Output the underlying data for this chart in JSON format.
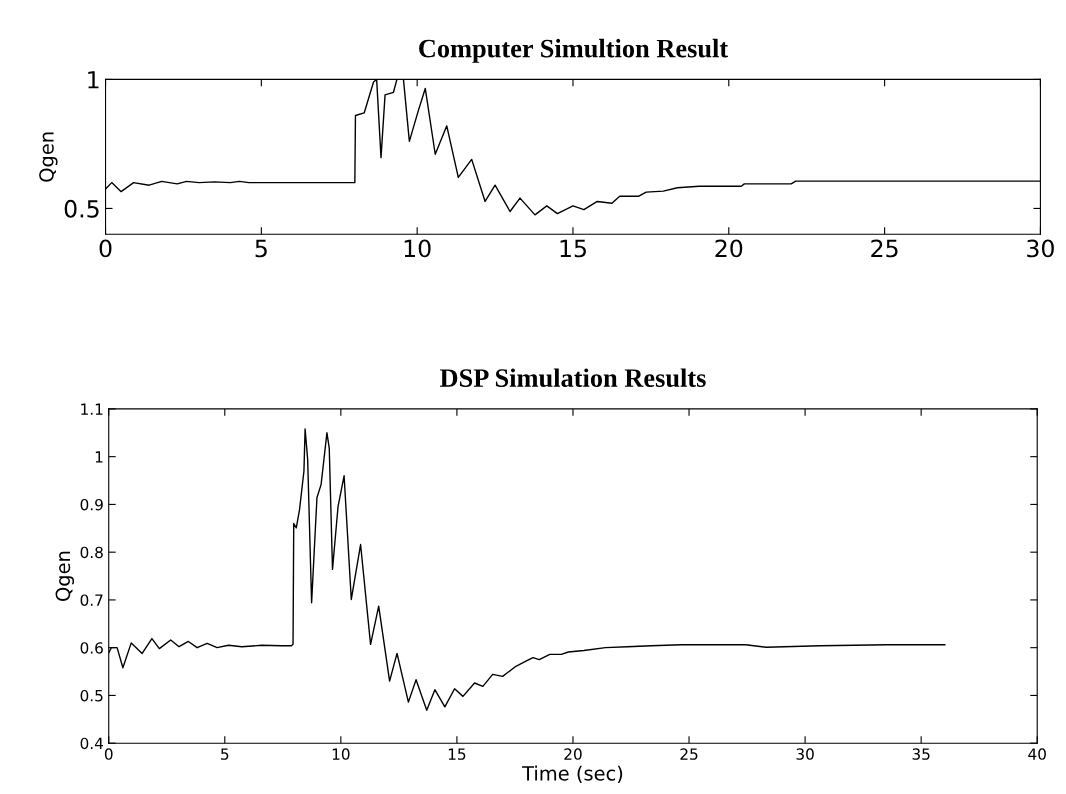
{
  "chart_data": [
    {
      "type": "line",
      "title": "Computer Simultion Result",
      "ylabel": "Qgen",
      "xlim": [
        0,
        30
      ],
      "ylim": [
        0.4,
        1
      ],
      "xticks": [
        0,
        5,
        10,
        15,
        20,
        25,
        30
      ],
      "yticks": [
        0.5,
        1
      ],
      "grid": false,
      "series": [
        {
          "color": "#000000",
          "x": [
            0,
            0.2,
            0.5,
            0.9,
            1.4,
            1.8,
            2.3,
            2.6,
            3,
            3.5,
            4,
            4.3,
            4.6,
            8.0,
            8.02,
            8.3,
            8.6,
            8.7,
            8.84,
            8.97,
            9.24,
            9.35,
            9.56,
            9.75,
            10.04,
            10.26,
            10.58,
            10.95,
            11.32,
            11.75,
            12.18,
            12.5,
            12.98,
            13.3,
            13.78,
            14.16,
            14.5,
            15,
            15.35,
            15.78,
            16.25,
            16.5,
            17.1,
            17.35,
            17.9,
            18.35,
            19.05,
            20.4,
            20.5,
            22.0,
            22.15,
            30
          ],
          "values": [
            0.575,
            0.6,
            0.565,
            0.6,
            0.59,
            0.605,
            0.595,
            0.605,
            0.6,
            0.603,
            0.6,
            0.605,
            0.6,
            0.6,
            0.86,
            0.87,
            0.99,
            1.0,
            0.697,
            0.94,
            0.95,
            1.0,
            1.0,
            0.76,
            0.88,
            0.965,
            0.71,
            0.82,
            0.62,
            0.69,
            0.527,
            0.59,
            0.488,
            0.54,
            0.475,
            0.51,
            0.48,
            0.51,
            0.495,
            0.527,
            0.52,
            0.547,
            0.547,
            0.563,
            0.567,
            0.58,
            0.586,
            0.586,
            0.595,
            0.595,
            0.606,
            0.606
          ]
        }
      ]
    },
    {
      "type": "line",
      "title": "DSP Simulation Results",
      "xlabel": "Time (sec)",
      "ylabel": "Qgen",
      "xlim": [
        0,
        40
      ],
      "ylim": [
        0.4,
        1.1
      ],
      "xticks": [
        0,
        5,
        10,
        15,
        20,
        25,
        30,
        35,
        40
      ],
      "yticks": [
        0.4,
        0.5,
        0.6,
        0.7,
        0.8,
        0.9,
        1,
        1.1
      ],
      "grid": false,
      "series": [
        {
          "color": "#000000",
          "x": [
            0,
            0.11,
            0.36,
            0.61,
            0.97,
            1.44,
            1.86,
            2.18,
            2.67,
            3.03,
            3.43,
            3.81,
            4.24,
            4.67,
            5.16,
            5.73,
            6.59,
            7.44,
            7.87,
            7.94,
            7.97,
            8.08,
            8.22,
            8.41,
            8.46,
            8.57,
            8.74,
            8.97,
            9.15,
            9.4,
            9.5,
            9.64,
            9.88,
            10.14,
            10.45,
            10.85,
            11.28,
            11.63,
            12.1,
            12.42,
            12.91,
            13.24,
            13.7,
            14.05,
            14.48,
            14.9,
            15.26,
            15.76,
            16.12,
            16.54,
            16.97,
            17.54,
            18.1,
            18.28,
            18.55,
            19.0,
            19.5,
            19.8,
            20.47,
            21.4,
            22.35,
            23.37,
            24.68,
            27.44,
            28.32,
            30.64,
            33.55,
            36.02
          ],
          "values": [
            0.589,
            0.6,
            0.6,
            0.558,
            0.61,
            0.588,
            0.619,
            0.598,
            0.616,
            0.602,
            0.613,
            0.6,
            0.609,
            0.6,
            0.605,
            0.602,
            0.605,
            0.604,
            0.604,
            0.607,
            0.86,
            0.851,
            0.889,
            0.97,
            1.058,
            0.994,
            0.694,
            0.914,
            0.942,
            1.05,
            1.018,
            0.764,
            0.896,
            0.96,
            0.701,
            0.816,
            0.607,
            0.687,
            0.53,
            0.588,
            0.486,
            0.533,
            0.469,
            0.512,
            0.476,
            0.514,
            0.498,
            0.526,
            0.519,
            0.544,
            0.54,
            0.561,
            0.575,
            0.579,
            0.575,
            0.586,
            0.586,
            0.591,
            0.594,
            0.6,
            0.602,
            0.604,
            0.606,
            0.606,
            0.601,
            0.604,
            0.606,
            0.606
          ]
        }
      ]
    }
  ]
}
